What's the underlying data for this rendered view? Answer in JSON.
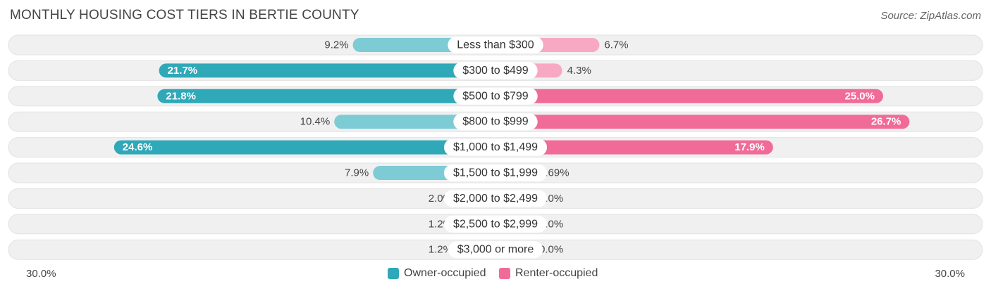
{
  "title": "MONTHLY HOUSING COST TIERS IN BERTIE COUNTY",
  "source": "Source: ZipAtlas.com",
  "colors": {
    "owner_dark": "#2fa8b8",
    "owner_light": "#7ccbd5",
    "renter_dark": "#f06b98",
    "renter_light": "#f7a9c3",
    "row_bg": "#f0f0f0"
  },
  "legend": {
    "owner": "Owner-occupied",
    "renter": "Renter-occupied"
  },
  "axis": {
    "left_label": "30.0%",
    "right_label": "30.0%"
  },
  "chart_data": {
    "type": "bar",
    "orientation": "horizontal-diverging",
    "categories": [
      "Less than $300",
      "$300 to $499",
      "$500 to $799",
      "$800 to $999",
      "$1,000 to $1,499",
      "$1,500 to $1,999",
      "$2,000 to $2,499",
      "$2,500 to $2,999",
      "$3,000 or more"
    ],
    "series": [
      {
        "name": "Owner-occupied",
        "values": [
          9.2,
          21.7,
          21.8,
          10.4,
          24.6,
          7.9,
          2.0,
          1.2,
          1.2
        ],
        "labels": [
          "9.2%",
          "21.7%",
          "21.8%",
          "10.4%",
          "24.6%",
          "7.9%",
          "2.0%",
          "1.2%",
          "1.2%"
        ]
      },
      {
        "name": "Renter-occupied",
        "values": [
          6.7,
          4.3,
          25.0,
          26.7,
          17.9,
          0.69,
          0.0,
          0.0,
          0.0
        ],
        "labels": [
          "6.7%",
          "4.3%",
          "25.0%",
          "26.7%",
          "17.9%",
          "0.69%",
          "0.0%",
          "0.0%",
          "0.0%"
        ]
      }
    ],
    "xlim": [
      0,
      30
    ],
    "legend_position": "bottom-center"
  }
}
